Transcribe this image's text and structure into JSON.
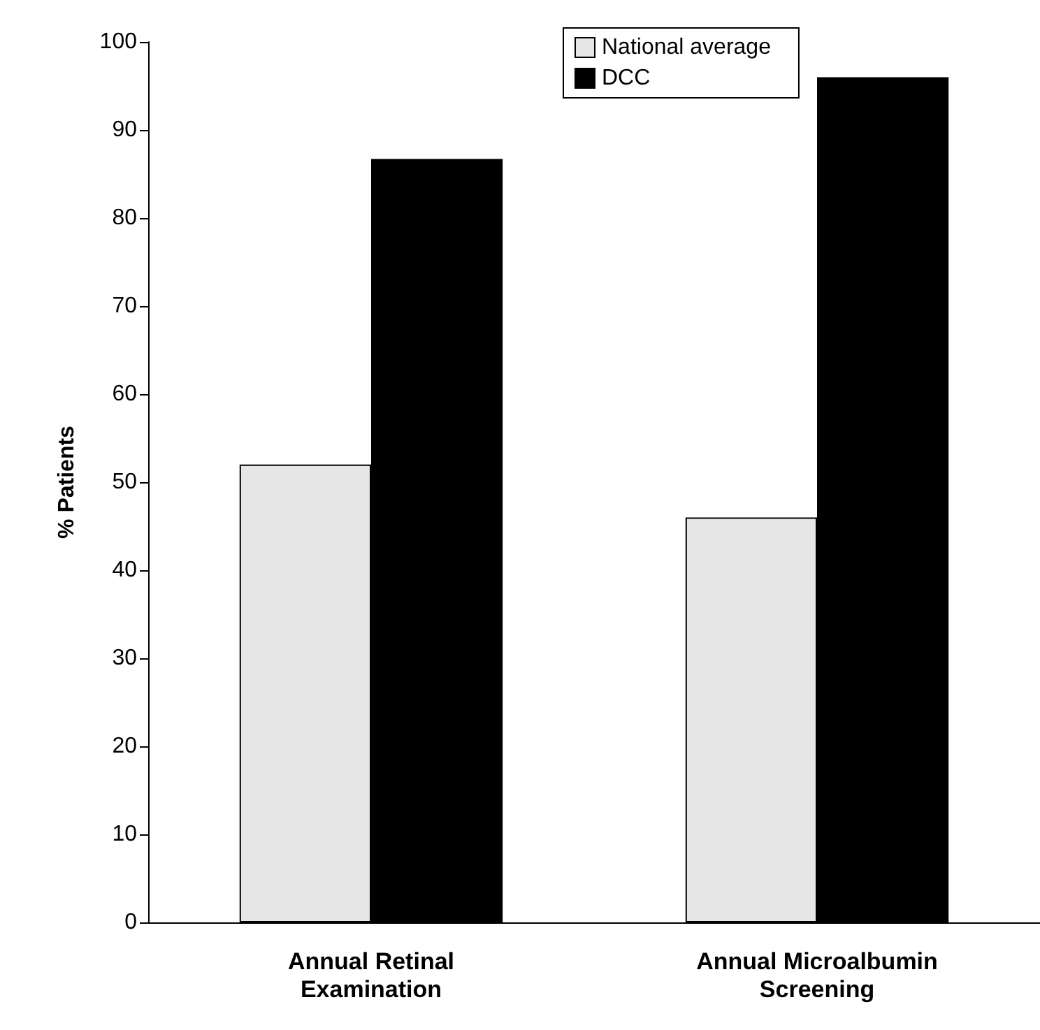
{
  "chart_data": {
    "type": "bar",
    "ylabel": "% Patients",
    "categories": [
      "Annual Retinal\nExamination",
      "Annual Microalbumin\nScreening"
    ],
    "series": [
      {
        "name": "National average",
        "color": "#e6e6e6",
        "values": [
          52,
          46
        ]
      },
      {
        "name": "DCC",
        "color": "#000000",
        "values": [
          86.7,
          96
        ]
      }
    ],
    "ylim": [
      0,
      100
    ],
    "yticks": [
      0,
      10,
      20,
      30,
      40,
      50,
      60,
      70,
      80,
      90,
      100
    ],
    "grid": false,
    "legend": "top"
  }
}
